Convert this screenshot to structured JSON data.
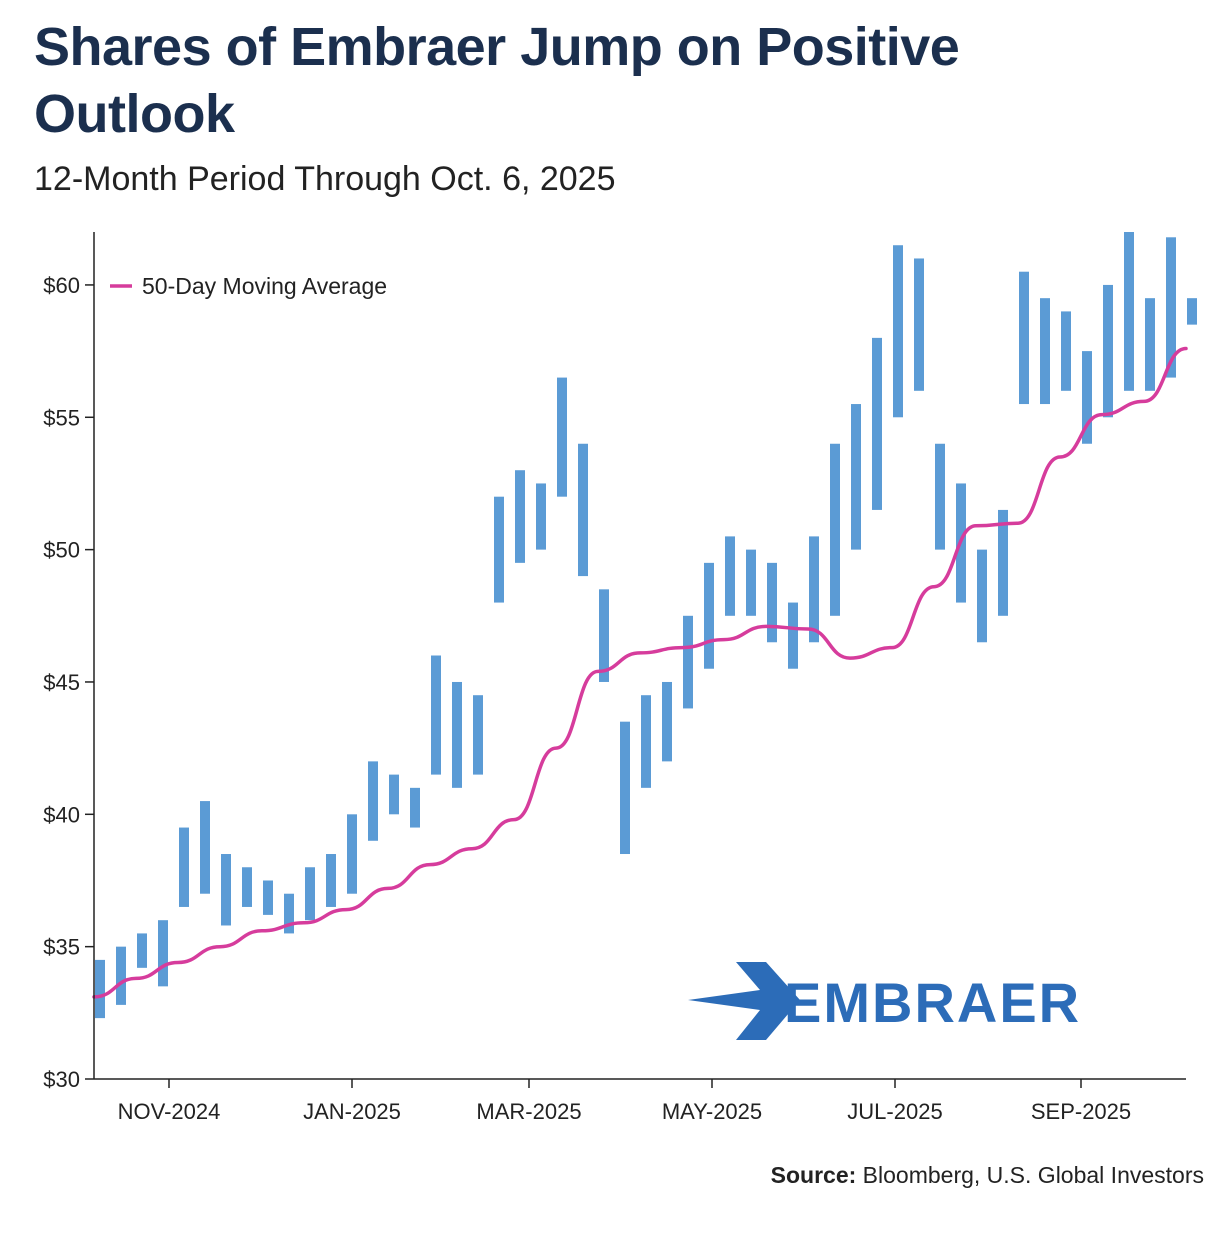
{
  "header": {
    "title": "Shares of Embraer Jump on Positive Outlook",
    "subtitle": "12-Month Period Through Oct. 6, 2025"
  },
  "footer": {
    "source_label": "Source:",
    "source_text": "Bloomberg, U.S. Global Investors"
  },
  "logo": {
    "text": "EMBRAER",
    "icon": "embraer-arrow-logo-icon"
  },
  "colors": {
    "price": "#5b9bd5",
    "moving_average": "#d63c9c",
    "axis": "#222222",
    "logo": "#2c6cb8",
    "title": "#1b2f4e"
  },
  "chart_data": {
    "type": "line",
    "title": "Shares of Embraer Jump on Positive Outlook",
    "subtitle": "12-Month Period Through Oct. 6, 2025",
    "xlabel": "",
    "ylabel": "",
    "x_range": [
      "2024-10-07",
      "2025-10-06"
    ],
    "ylim": [
      30,
      62
    ],
    "y_ticks": [
      30,
      35,
      40,
      45,
      50,
      55,
      60
    ],
    "y_tick_labels": [
      "$30",
      "$35",
      "$40",
      "$45",
      "$50",
      "$55",
      "$60"
    ],
    "x_ticks": [
      "2024-11-01",
      "2025-01-01",
      "2025-03-01",
      "2025-05-01",
      "2025-07-01",
      "2025-09-01"
    ],
    "x_tick_labels": [
      "NOV-2024",
      "JAN-2025",
      "MAR-2025",
      "MAY-2025",
      "JUL-2025",
      "SEP-2025"
    ],
    "grid": false,
    "legend": {
      "placement": "top-left",
      "entries": [
        "50-Day Moving Average"
      ]
    },
    "series": [
      {
        "style": "price-bars",
        "color": "#5b9bd5",
        "x": [
          "2024-10-07",
          "2024-10-14",
          "2024-10-21",
          "2024-10-28",
          "2024-11-04",
          "2024-11-11",
          "2024-11-18",
          "2024-11-25",
          "2024-12-02",
          "2024-12-09",
          "2024-12-16",
          "2024-12-23",
          "2024-12-30",
          "2025-01-06",
          "2025-01-13",
          "2025-01-20",
          "2025-01-27",
          "2025-02-03",
          "2025-02-10",
          "2025-02-17",
          "2025-02-24",
          "2025-03-03",
          "2025-03-10",
          "2025-03-17",
          "2025-03-24",
          "2025-03-31",
          "2025-04-07",
          "2025-04-14",
          "2025-04-21",
          "2025-04-28",
          "2025-05-05",
          "2025-05-12",
          "2025-05-19",
          "2025-05-26",
          "2025-06-02",
          "2025-06-09",
          "2025-06-16",
          "2025-06-23",
          "2025-06-30",
          "2025-07-07",
          "2025-07-14",
          "2025-07-21",
          "2025-07-28",
          "2025-08-04",
          "2025-08-11",
          "2025-08-18",
          "2025-08-25",
          "2025-09-01",
          "2025-09-08",
          "2025-09-15",
          "2025-09-22",
          "2025-09-29",
          "2025-10-06"
        ],
        "low": [
          32.3,
          32.8,
          34.2,
          33.5,
          36.5,
          37.0,
          35.8,
          36.5,
          36.2,
          35.5,
          36.0,
          36.5,
          37.0,
          39.0,
          40.0,
          39.5,
          41.5,
          41.0,
          41.5,
          48.0,
          49.5,
          50.0,
          52.0,
          49.0,
          45.0,
          38.5,
          41.0,
          42.0,
          44.0,
          45.5,
          47.5,
          47.5,
          46.5,
          45.5,
          46.5,
          47.5,
          50.0,
          51.5,
          55.0,
          56.0,
          50.0,
          48.0,
          46.5,
          47.5,
          55.5,
          55.5,
          56.0,
          54.0,
          55.0,
          56.0,
          56.0,
          56.5,
          58.5
        ],
        "high": [
          34.5,
          35.0,
          35.5,
          36.0,
          39.5,
          40.5,
          38.5,
          38.0,
          37.5,
          37.0,
          38.0,
          38.5,
          40.0,
          42.0,
          41.5,
          41.0,
          46.0,
          45.0,
          44.5,
          52.0,
          53.0,
          52.5,
          56.5,
          54.0,
          48.5,
          43.5,
          44.5,
          45.0,
          47.5,
          49.5,
          50.5,
          50.0,
          49.5,
          48.0,
          50.5,
          54.0,
          55.5,
          58.0,
          61.5,
          61.0,
          54.0,
          52.5,
          50.0,
          51.5,
          60.5,
          59.5,
          59.0,
          57.5,
          60.0,
          62.0,
          59.5,
          61.8,
          59.5
        ]
      },
      {
        "name": "50-Day Moving Average",
        "style": "line",
        "color": "#d63c9c",
        "x": [
          "2024-10-07",
          "2024-10-21",
          "2024-11-04",
          "2024-11-18",
          "2024-12-02",
          "2024-12-16",
          "2024-12-30",
          "2025-01-13",
          "2025-01-27",
          "2025-02-10",
          "2025-02-24",
          "2025-03-10",
          "2025-03-24",
          "2025-04-07",
          "2025-04-21",
          "2025-05-05",
          "2025-05-19",
          "2025-06-02",
          "2025-06-16",
          "2025-06-30",
          "2025-07-14",
          "2025-07-28",
          "2025-08-11",
          "2025-08-25",
          "2025-09-08",
          "2025-09-22",
          "2025-10-06"
        ],
        "values": [
          33.1,
          33.8,
          34.4,
          35.0,
          35.6,
          35.9,
          36.4,
          37.2,
          38.1,
          38.7,
          39.8,
          42.5,
          45.4,
          46.1,
          46.3,
          46.6,
          47.1,
          47.0,
          45.9,
          46.3,
          48.6,
          50.9,
          51.0,
          53.5,
          55.1,
          55.6,
          57.6
        ]
      }
    ]
  }
}
